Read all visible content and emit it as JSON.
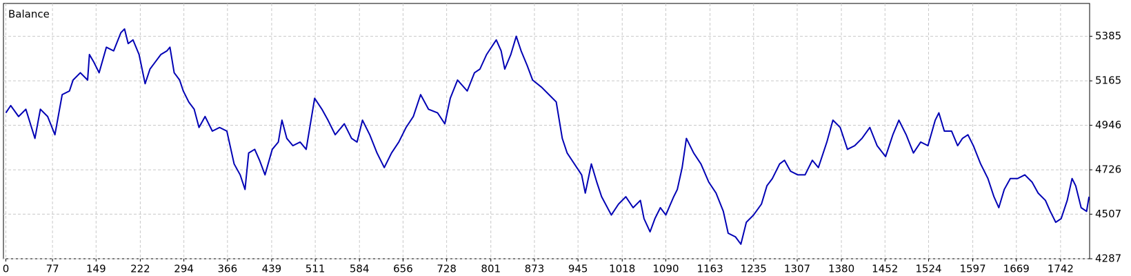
{
  "chart_data": {
    "type": "line",
    "title": "Balance",
    "x": [
      0,
      8,
      21,
      33,
      48,
      57,
      69,
      81,
      93,
      105,
      111,
      123,
      135,
      138,
      145,
      154,
      166,
      178,
      190,
      196,
      202,
      210,
      220,
      230,
      238,
      247,
      256,
      266,
      271,
      278,
      287,
      293,
      302,
      311,
      319,
      329,
      341,
      353,
      365,
      377,
      387,
      395,
      401,
      411,
      419,
      428,
      440,
      450,
      456,
      464,
      474,
      486,
      496,
      504,
      510,
      522,
      532,
      544,
      559,
      571,
      580,
      589,
      601,
      613,
      625,
      637,
      649,
      661,
      673,
      685,
      698,
      713,
      725,
      734,
      746,
      762,
      774,
      783,
      794,
      810,
      818,
      824,
      834,
      843,
      851,
      861,
      870,
      885,
      897,
      909,
      919,
      927,
      939,
      951,
      957,
      967,
      976,
      984,
      1000,
      1012,
      1024,
      1036,
      1048,
      1054,
      1064,
      1072,
      1081,
      1090,
      1103,
      1109,
      1117,
      1124,
      1136,
      1148,
      1161,
      1173,
      1185,
      1193,
      1205,
      1214,
      1223,
      1235,
      1248,
      1257,
      1266,
      1278,
      1286,
      1296,
      1308,
      1320,
      1332,
      1342,
      1350,
      1356,
      1366,
      1378,
      1390,
      1402,
      1414,
      1427,
      1439,
      1453,
      1465,
      1475,
      1487,
      1499,
      1511,
      1523,
      1535,
      1541,
      1550,
      1562,
      1572,
      1580,
      1589,
      1598,
      1610,
      1622,
      1632,
      1640,
      1649,
      1659,
      1671,
      1683,
      1695,
      1705,
      1717,
      1725,
      1734,
      1743,
      1753,
      1761,
      1767,
      1776,
      1785,
      1789
    ],
    "series": [
      {
        "name": "Balance",
        "color": "#0000b4",
        "values": [
          5007,
          5043,
          4989,
          5025,
          4881,
          5025,
          4989,
          4899,
          5097,
          5115,
          5169,
          5205,
          5169,
          5295,
          5259,
          5205,
          5331,
          5313,
          5403,
          5421,
          5349,
          5367,
          5295,
          5151,
          5223,
          5259,
          5295,
          5313,
          5331,
          5205,
          5169,
          5115,
          5061,
          5025,
          4935,
          4989,
          4917,
          4935,
          4917,
          4755,
          4701,
          4629,
          4809,
          4827,
          4773,
          4701,
          4827,
          4863,
          4971,
          4881,
          4845,
          4863,
          4827,
          4971,
          5079,
          5025,
          4971,
          4899,
          4953,
          4881,
          4863,
          4971,
          4899,
          4809,
          4737,
          4809,
          4863,
          4935,
          4989,
          5097,
          5025,
          5007,
          4953,
          5079,
          5169,
          5115,
          5205,
          5223,
          5295,
          5367,
          5313,
          5223,
          5295,
          5385,
          5313,
          5241,
          5169,
          5133,
          5097,
          5061,
          4881,
          4809,
          4755,
          4701,
          4611,
          4755,
          4665,
          4593,
          4503,
          4557,
          4593,
          4539,
          4575,
          4485,
          4420,
          4485,
          4539,
          4503,
          4593,
          4629,
          4737,
          4881,
          4809,
          4755,
          4665,
          4611,
          4521,
          4413,
          4395,
          4359,
          4467,
          4503,
          4557,
          4647,
          4683,
          4755,
          4773,
          4719,
          4701,
          4701,
          4773,
          4737,
          4809,
          4863,
          4971,
          4935,
          4827,
          4845,
          4881,
          4935,
          4845,
          4791,
          4899,
          4971,
          4899,
          4809,
          4863,
          4845,
          4971,
          5007,
          4917,
          4917,
          4845,
          4881,
          4899,
          4845,
          4755,
          4683,
          4593,
          4539,
          4629,
          4683,
          4683,
          4701,
          4665,
          4611,
          4575,
          4521,
          4467,
          4485,
          4575,
          4683,
          4647,
          4539,
          4521,
          4593
        ]
      }
    ],
    "xlim": [
      -4,
      1790
    ],
    "ylim": [
      4287,
      5547
    ],
    "xticks": [
      0,
      77,
      149,
      222,
      294,
      366,
      439,
      511,
      584,
      656,
      728,
      801,
      873,
      945,
      1018,
      1090,
      1163,
      1235,
      1307,
      1380,
      1452,
      1524,
      1597,
      1669,
      1742
    ],
    "yticks": [
      4287,
      4507,
      4726,
      4946,
      5165,
      5385
    ],
    "grid": true
  }
}
